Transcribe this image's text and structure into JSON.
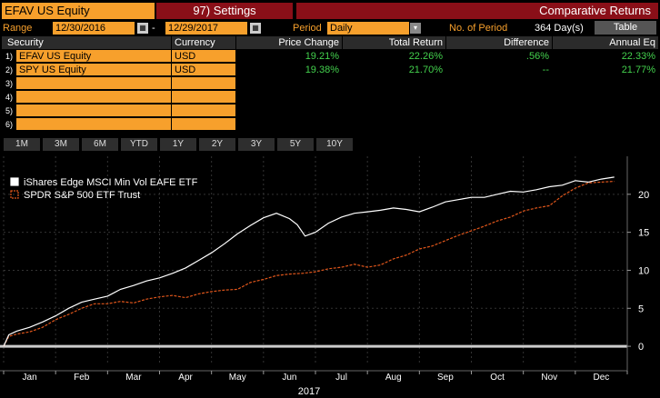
{
  "header": {
    "ticker": "EFAV US Equity",
    "settings": "97) Settings",
    "title": "Comparative Returns"
  },
  "range": {
    "label": "Range",
    "start": "12/30/2016",
    "dash": "-",
    "end": "12/29/2017",
    "period_label": "Period",
    "period_value": "Daily",
    "nop_label": "No. of Period",
    "nop_value": "364 Day(s)",
    "table_btn": "Table"
  },
  "table": {
    "headers": [
      "Security",
      "Currency",
      "Price Change",
      "Total Return",
      "Difference",
      "Annual Eq"
    ],
    "rows": [
      {
        "n": "1)",
        "security": "EFAV US Equity",
        "currency": "USD",
        "price_change": "19.21%",
        "total_return": "22.26%",
        "difference": ".56%",
        "annual": "22.33%"
      },
      {
        "n": "2)",
        "security": "SPY US Equity",
        "currency": "USD",
        "price_change": "19.38%",
        "total_return": "21.70%",
        "difference": "--",
        "annual": "21.77%"
      },
      {
        "n": "3)",
        "security": "",
        "currency": "",
        "price_change": "",
        "total_return": "",
        "difference": "",
        "annual": ""
      },
      {
        "n": "4)",
        "security": "",
        "currency": "",
        "price_change": "",
        "total_return": "",
        "difference": "",
        "annual": ""
      },
      {
        "n": "5)",
        "security": "",
        "currency": "",
        "price_change": "",
        "total_return": "",
        "difference": "",
        "annual": ""
      },
      {
        "n": "6)",
        "security": "",
        "currency": "",
        "price_change": "",
        "total_return": "",
        "difference": "",
        "annual": ""
      }
    ]
  },
  "periods": [
    "1M",
    "3M",
    "6M",
    "YTD",
    "1Y",
    "2Y",
    "3Y",
    "5Y",
    "10Y"
  ],
  "colors": {
    "orange": "#f7a02c",
    "red": "#8a0f18",
    "green": "#43d14d",
    "series1": "#ffffff",
    "series2": "#e0561b"
  },
  "chart_data": {
    "type": "line",
    "xlabel": "2017",
    "ylabel": "",
    "months": [
      "Jan",
      "Feb",
      "Mar",
      "Apr",
      "May",
      "Jun",
      "Jul",
      "Aug",
      "Sep",
      "Oct",
      "Nov",
      "Dec"
    ],
    "yticks": [
      0,
      5,
      10,
      15,
      20
    ],
    "ylim": [
      -2.5,
      25
    ],
    "xlim": [
      0,
      12
    ],
    "legend_position": "top-left",
    "series": [
      {
        "name": "iShares Edge MSCI Min Vol EAFE ETF",
        "color": "#ffffff",
        "style": "solid",
        "points": [
          [
            0,
            0
          ],
          [
            0.1,
            1.5
          ],
          [
            0.25,
            2.0
          ],
          [
            0.5,
            2.5
          ],
          [
            0.75,
            3.2
          ],
          [
            1.0,
            4.0
          ],
          [
            1.25,
            5.0
          ],
          [
            1.5,
            5.8
          ],
          [
            1.75,
            6.2
          ],
          [
            2.0,
            6.6
          ],
          [
            2.25,
            7.5
          ],
          [
            2.5,
            8.0
          ],
          [
            2.75,
            8.6
          ],
          [
            3.0,
            9.0
          ],
          [
            3.25,
            9.6
          ],
          [
            3.5,
            10.3
          ],
          [
            3.75,
            11.3
          ],
          [
            4.0,
            12.3
          ],
          [
            4.25,
            13.5
          ],
          [
            4.5,
            14.8
          ],
          [
            4.75,
            15.9
          ],
          [
            5.0,
            16.9
          ],
          [
            5.25,
            17.5
          ],
          [
            5.5,
            16.8
          ],
          [
            5.65,
            16.0
          ],
          [
            5.8,
            14.5
          ],
          [
            6.0,
            15.0
          ],
          [
            6.25,
            16.2
          ],
          [
            6.5,
            17.0
          ],
          [
            6.75,
            17.5
          ],
          [
            7.0,
            17.7
          ],
          [
            7.25,
            17.9
          ],
          [
            7.5,
            18.2
          ],
          [
            7.75,
            18.0
          ],
          [
            8.0,
            17.7
          ],
          [
            8.25,
            18.3
          ],
          [
            8.5,
            19.0
          ],
          [
            8.75,
            19.3
          ],
          [
            9.0,
            19.6
          ],
          [
            9.25,
            19.6
          ],
          [
            9.5,
            20.0
          ],
          [
            9.75,
            20.4
          ],
          [
            10.0,
            20.3
          ],
          [
            10.25,
            20.6
          ],
          [
            10.5,
            21.0
          ],
          [
            10.75,
            21.2
          ],
          [
            11.0,
            21.8
          ],
          [
            11.25,
            21.6
          ],
          [
            11.5,
            22.0
          ],
          [
            11.75,
            22.26
          ]
        ]
      },
      {
        "name": "SPDR S&P 500 ETF Trust",
        "color": "#e0561b",
        "style": "dashed",
        "points": [
          [
            0,
            0
          ],
          [
            0.1,
            1.3
          ],
          [
            0.25,
            1.6
          ],
          [
            0.5,
            1.9
          ],
          [
            0.75,
            2.5
          ],
          [
            1.0,
            3.5
          ],
          [
            1.25,
            4.2
          ],
          [
            1.5,
            5.0
          ],
          [
            1.75,
            5.6
          ],
          [
            2.0,
            5.6
          ],
          [
            2.25,
            5.9
          ],
          [
            2.5,
            5.7
          ],
          [
            2.75,
            6.2
          ],
          [
            3.0,
            6.5
          ],
          [
            3.25,
            6.7
          ],
          [
            3.5,
            6.4
          ],
          [
            3.75,
            6.9
          ],
          [
            4.0,
            7.2
          ],
          [
            4.25,
            7.4
          ],
          [
            4.5,
            7.5
          ],
          [
            4.75,
            8.4
          ],
          [
            5.0,
            8.8
          ],
          [
            5.25,
            9.3
          ],
          [
            5.5,
            9.5
          ],
          [
            5.75,
            9.6
          ],
          [
            6.0,
            9.8
          ],
          [
            6.25,
            10.2
          ],
          [
            6.5,
            10.4
          ],
          [
            6.75,
            10.8
          ],
          [
            7.0,
            10.4
          ],
          [
            7.25,
            10.7
          ],
          [
            7.5,
            11.5
          ],
          [
            7.75,
            12.0
          ],
          [
            8.0,
            12.8
          ],
          [
            8.25,
            13.2
          ],
          [
            8.5,
            13.9
          ],
          [
            8.75,
            14.6
          ],
          [
            9.0,
            15.2
          ],
          [
            9.25,
            15.8
          ],
          [
            9.5,
            16.5
          ],
          [
            9.75,
            17.0
          ],
          [
            10.0,
            17.8
          ],
          [
            10.25,
            18.2
          ],
          [
            10.5,
            18.5
          ],
          [
            10.75,
            19.8
          ],
          [
            11.0,
            20.8
          ],
          [
            11.25,
            21.5
          ],
          [
            11.5,
            21.6
          ],
          [
            11.75,
            21.7
          ]
        ]
      }
    ]
  }
}
